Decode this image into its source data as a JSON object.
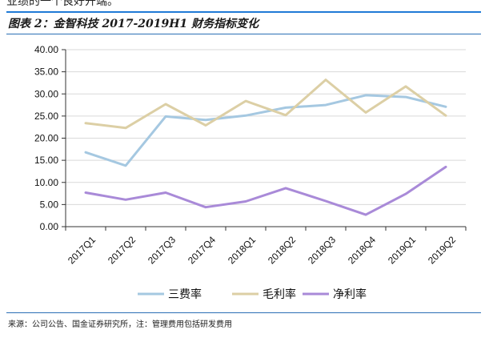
{
  "header": {
    "top_text": "业绩的一个良好开端。",
    "figure_title": "图表 2：金智科技 2017-2019H1 财务指标变化"
  },
  "footer": {
    "source": "来源：公司公告、国金证券研究所，注：管理费用包括研发费用"
  },
  "colors": {
    "accent_rule": "#1f7ad6",
    "三费率": "#a5c8e1",
    "毛利率": "#dccfa5",
    "净利率": "#a98ad8"
  },
  "chart_data": {
    "type": "line",
    "title": "",
    "xlabel": "",
    "ylabel": "",
    "categories": [
      "2017Q1",
      "2017Q2",
      "2017Q3",
      "2017Q4",
      "2018Q1",
      "2018Q2",
      "2018Q3",
      "2018Q4",
      "2019Q1",
      "2019Q2"
    ],
    "y_ticks": [
      "0.00",
      "5.00",
      "10.00",
      "15.00",
      "20.00",
      "25.00",
      "30.00",
      "35.00",
      "40.00"
    ],
    "ylim": [
      0,
      40
    ],
    "grid": true,
    "legend_position": "bottom",
    "series": [
      {
        "name": "三费率",
        "color": "#a5c8e1",
        "values": [
          16.8,
          13.8,
          24.9,
          24.1,
          25.1,
          26.9,
          27.5,
          29.7,
          29.3,
          27.1
        ]
      },
      {
        "name": "毛利率",
        "color": "#dccfa5",
        "values": [
          23.4,
          22.3,
          27.7,
          22.9,
          28.4,
          25.2,
          33.2,
          25.8,
          31.7,
          25.1
        ]
      },
      {
        "name": "净利率",
        "color": "#a98ad8",
        "values": [
          7.7,
          6.1,
          7.7,
          4.4,
          5.7,
          8.7,
          5.8,
          2.7,
          7.4,
          13.5
        ]
      }
    ]
  }
}
